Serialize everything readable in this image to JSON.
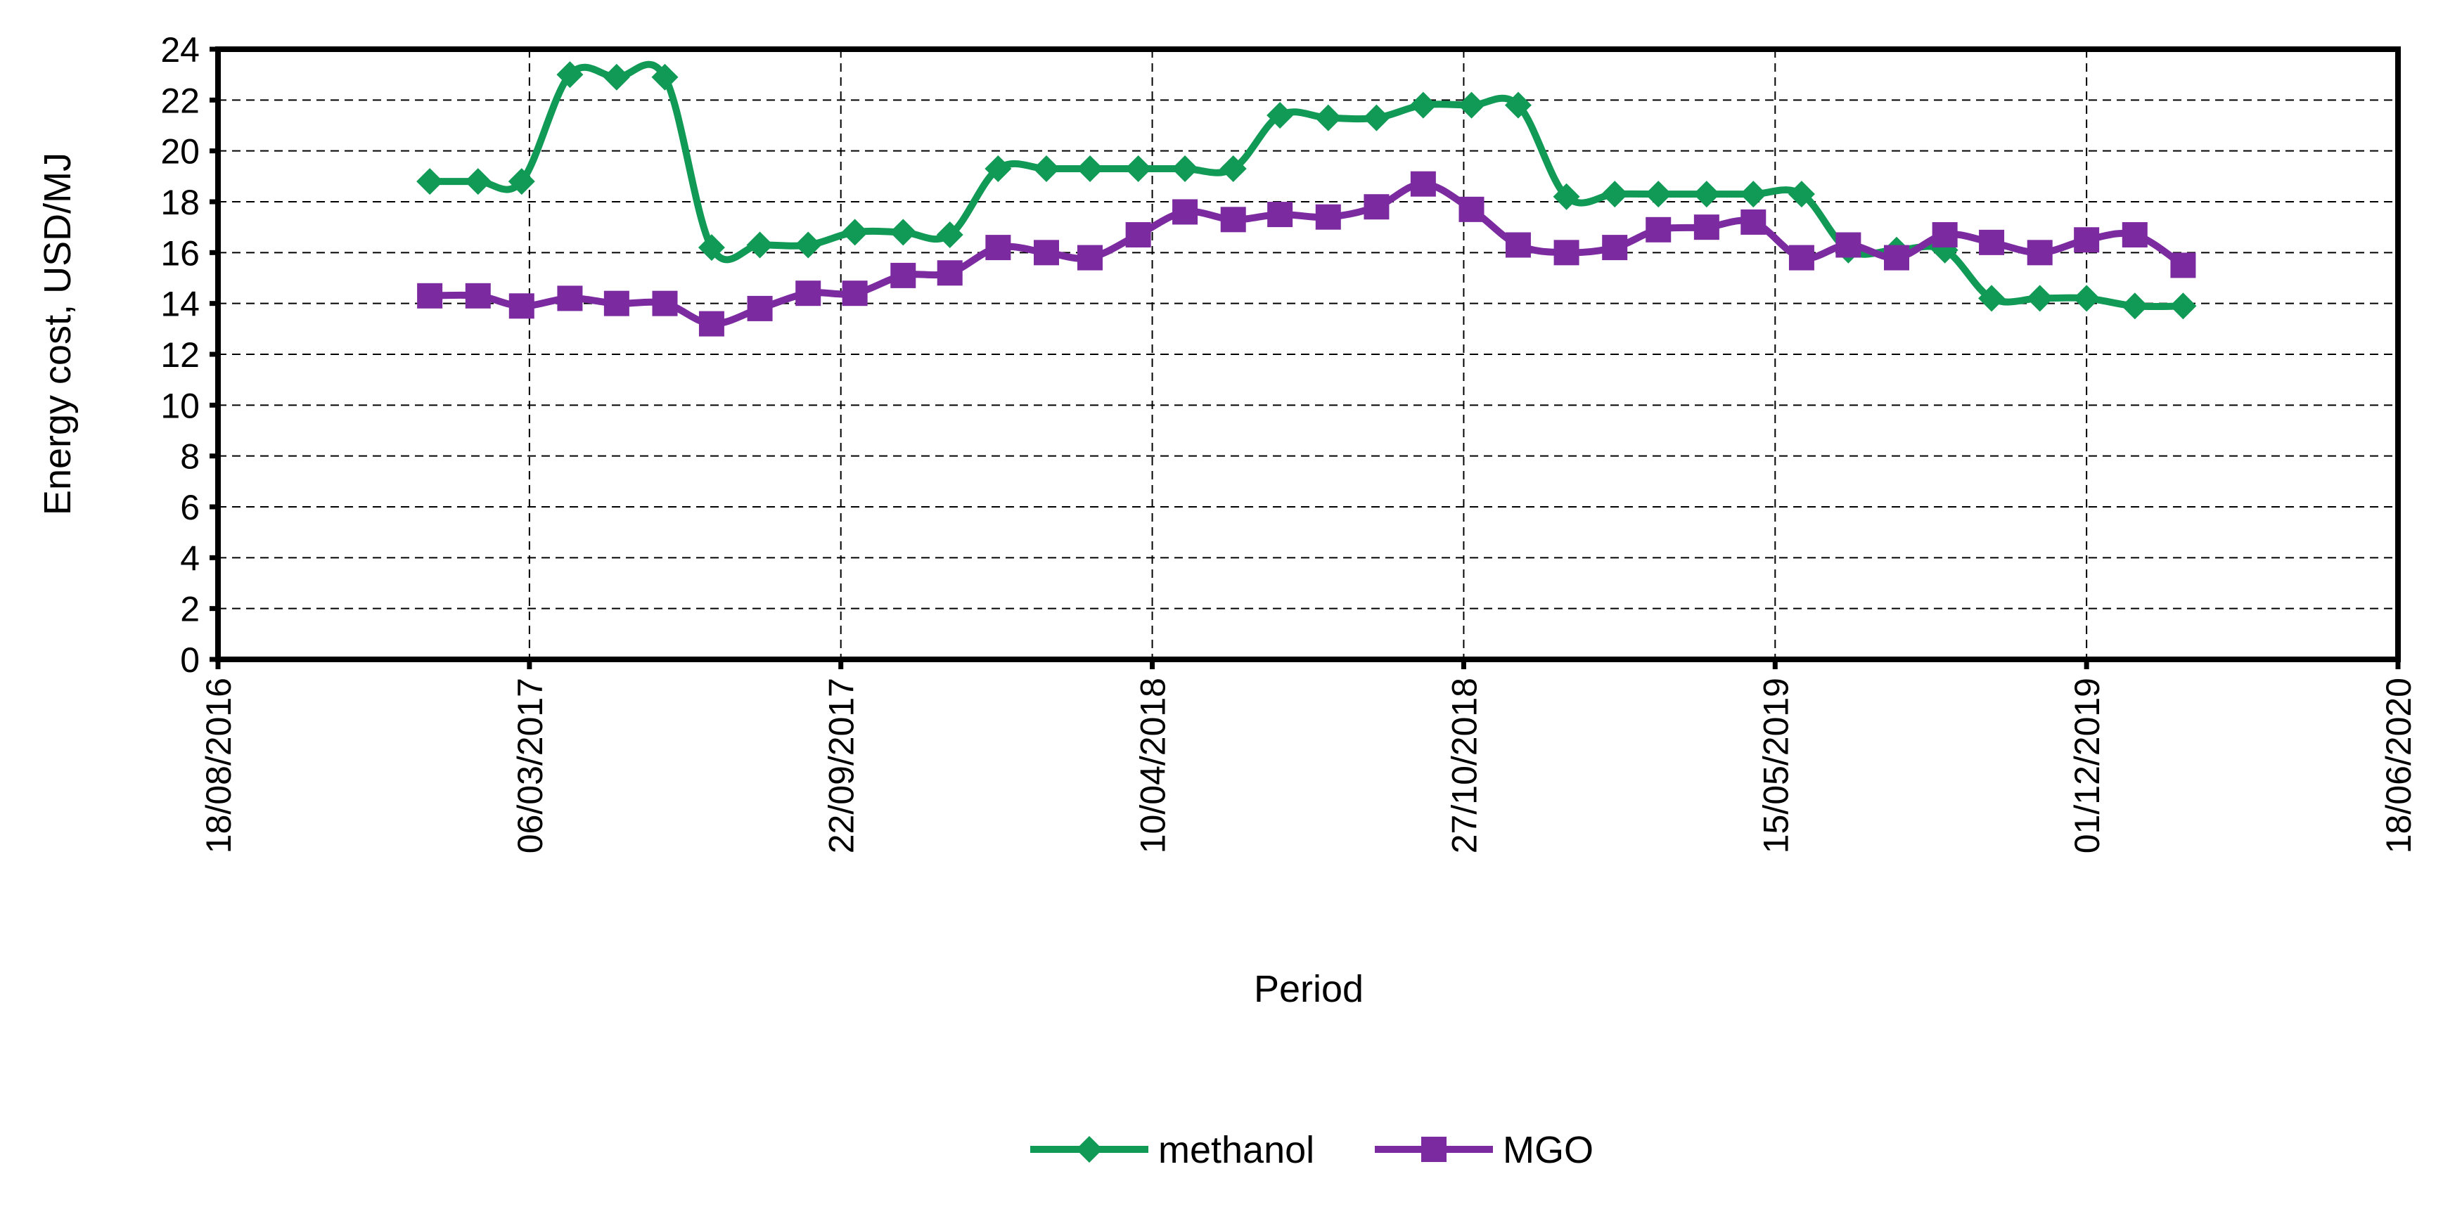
{
  "chart_data": {
    "type": "line",
    "xlabel": "Period",
    "ylabel": "Energy cost, USD/MJ",
    "x_ticks": [
      "18/08/2016",
      "06/03/2017",
      "22/09/2017",
      "10/04/2018",
      "27/10/2018",
      "15/05/2019",
      "01/12/2019",
      "18/06/2020"
    ],
    "y_ticks": [
      "0",
      "2",
      "4",
      "6",
      "8",
      "10",
      "12",
      "14",
      "16",
      "18",
      "20",
      "22",
      "24"
    ],
    "xlim": [
      "2016-08-18",
      "2020-06-18"
    ],
    "ylim": [
      0,
      24
    ],
    "grid": true,
    "legend_position": "bottom",
    "x": [
      "2017-01-01",
      "2017-02-01",
      "2017-03-01",
      "2017-04-01",
      "2017-05-01",
      "2017-06-01",
      "2017-07-01",
      "2017-08-01",
      "2017-09-01",
      "2017-10-01",
      "2017-11-01",
      "2017-12-01",
      "2018-01-01",
      "2018-02-01",
      "2018-03-01",
      "2018-04-01",
      "2018-05-01",
      "2018-06-01",
      "2018-07-01",
      "2018-08-01",
      "2018-09-01",
      "2018-10-01",
      "2018-11-01",
      "2018-12-01",
      "2019-01-01",
      "2019-02-01",
      "2019-03-01",
      "2019-04-01",
      "2019-05-01",
      "2019-06-01",
      "2019-07-01",
      "2019-08-01",
      "2019-09-01",
      "2019-10-01",
      "2019-11-01",
      "2019-12-01",
      "2020-01-01",
      "2020-02-01"
    ],
    "series": [
      {
        "name": "methanol",
        "color": "#109a55",
        "marker": "diamond",
        "values": [
          18.8,
          18.8,
          18.8,
          23.0,
          22.9,
          22.9,
          16.2,
          16.3,
          16.3,
          16.8,
          16.8,
          16.7,
          19.3,
          19.3,
          19.3,
          19.3,
          19.3,
          19.3,
          21.4,
          21.3,
          21.3,
          21.8,
          21.8,
          21.8,
          18.2,
          18.3,
          18.3,
          18.3,
          18.3,
          18.3,
          16.1,
          16.1,
          16.1,
          14.2,
          14.2,
          14.2,
          13.9,
          13.9
        ]
      },
      {
        "name": "MGO",
        "color": "#7b2aa0",
        "marker": "square",
        "values": [
          14.3,
          14.3,
          13.9,
          14.2,
          14.0,
          14.0,
          13.2,
          13.8,
          14.4,
          14.4,
          15.1,
          15.2,
          16.2,
          16.0,
          15.8,
          16.7,
          17.6,
          17.3,
          17.5,
          17.4,
          17.8,
          18.7,
          17.7,
          16.3,
          16.0,
          16.2,
          16.9,
          17.0,
          17.2,
          15.8,
          16.3,
          15.8,
          16.7,
          16.4,
          16.0,
          16.5,
          16.7,
          15.5
        ]
      }
    ]
  }
}
